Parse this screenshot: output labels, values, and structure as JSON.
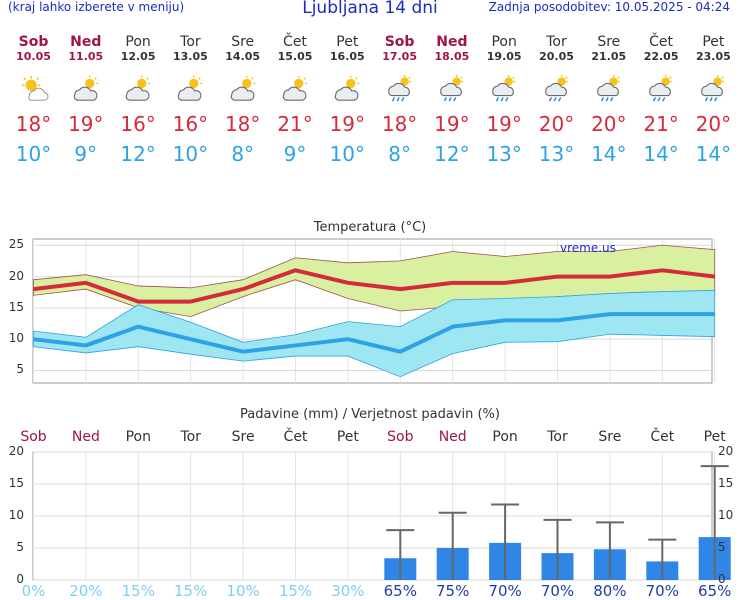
{
  "header": {
    "menu_hint": "(kraj lahko izberete v meniju)",
    "title": "Ljubljana 14 dni",
    "updated": "Zadnja posodobitev: 10.05.2025 - 04:24"
  },
  "days": [
    {
      "name": "Sob",
      "date": "10.05",
      "weekend": true,
      "icon": "partly-sunny-icon",
      "tmax": "18°",
      "tmin": "10°"
    },
    {
      "name": "Ned",
      "date": "11.05",
      "weekend": true,
      "icon": "cloudy-sun-icon",
      "tmax": "19°",
      "tmin": "9°"
    },
    {
      "name": "Pon",
      "date": "12.05",
      "weekend": false,
      "icon": "cloudy-sun-icon",
      "tmax": "16°",
      "tmin": "12°"
    },
    {
      "name": "Tor",
      "date": "13.05",
      "weekend": false,
      "icon": "cloudy-sun-icon",
      "tmax": "16°",
      "tmin": "10°"
    },
    {
      "name": "Sre",
      "date": "14.05",
      "weekend": false,
      "icon": "cloudy-sun-icon",
      "tmax": "18°",
      "tmin": "8°"
    },
    {
      "name": "Čet",
      "date": "15.05",
      "weekend": false,
      "icon": "cloudy-sun-icon",
      "tmax": "21°",
      "tmin": "9°"
    },
    {
      "name": "Pet",
      "date": "16.05",
      "weekend": false,
      "icon": "cloudy-sun-icon",
      "tmax": "19°",
      "tmin": "10°"
    },
    {
      "name": "Sob",
      "date": "17.05",
      "weekend": true,
      "icon": "rain-sun-icon",
      "tmax": "18°",
      "tmin": "8°"
    },
    {
      "name": "Ned",
      "date": "18.05",
      "weekend": true,
      "icon": "rain-sun-icon",
      "tmax": "19°",
      "tmin": "12°"
    },
    {
      "name": "Pon",
      "date": "19.05",
      "weekend": false,
      "icon": "rain-sun-icon",
      "tmax": "19°",
      "tmin": "13°"
    },
    {
      "name": "Tor",
      "date": "20.05",
      "weekend": false,
      "icon": "rain-sun-icon",
      "tmax": "20°",
      "tmin": "13°"
    },
    {
      "name": "Sre",
      "date": "21.05",
      "weekend": false,
      "icon": "rain-sun-icon",
      "tmax": "20°",
      "tmin": "14°"
    },
    {
      "name": "Čet",
      "date": "22.05",
      "weekend": false,
      "icon": "rain-sun-icon",
      "tmax": "21°",
      "tmin": "14°"
    },
    {
      "name": "Pet",
      "date": "23.05",
      "weekend": false,
      "icon": "rain-sun-icon",
      "tmax": "20°",
      "tmin": "14°"
    }
  ],
  "colors": {
    "tmax": "#d42a3c",
    "tmin": "#2ea2e6",
    "tmax_band": "#d8f0a0",
    "tmin_band": "#9ee6f2",
    "precip_bar": "#2f86e6",
    "weekend": "#a0144a"
  },
  "chart_data": [
    {
      "type": "line",
      "title": "Temperatura (°C)",
      "watermark": "vreme.us",
      "ylim": [
        3,
        26
      ],
      "yticks": [
        5,
        10,
        15,
        20,
        25
      ],
      "grid": true,
      "x": [
        "10.05",
        "11.05",
        "12.05",
        "13.05",
        "14.05",
        "15.05",
        "16.05",
        "17.05",
        "18.05",
        "19.05",
        "20.05",
        "21.05",
        "22.05",
        "23.05"
      ],
      "series": [
        {
          "values": [
            18,
            19,
            16,
            16,
            18,
            21,
            19,
            18,
            19,
            19,
            20,
            20,
            21,
            20
          ]
        },
        {
          "values": [
            19.5,
            20.3,
            18.5,
            18.2,
            19.5,
            23,
            22.2,
            22.5,
            24,
            23.2,
            24,
            24,
            25,
            24.3
          ]
        },
        {
          "values": [
            17,
            18,
            15,
            13.6,
            16.8,
            19.5,
            16.5,
            14.5,
            15.2,
            16.2,
            16.8,
            17.3,
            17.6,
            17
          ]
        },
        {
          "values": [
            10,
            9,
            12,
            10,
            8,
            9,
            10,
            8,
            12,
            13,
            13,
            14,
            14,
            14
          ]
        },
        {
          "values": [
            11.3,
            10.3,
            15.5,
            12.7,
            9.5,
            10.7,
            12.8,
            12,
            16.3,
            16.5,
            16.8,
            17.3,
            17.6,
            17.8
          ]
        },
        {
          "values": [
            8.8,
            7.8,
            8.8,
            7.6,
            6.5,
            7.3,
            7.3,
            4,
            7.7,
            9.5,
            9.6,
            10.8,
            10.6,
            10.4
          ]
        }
      ]
    },
    {
      "type": "bar",
      "title": "Padavine (mm) / Verjetnost padavin (%)",
      "ylim": [
        0,
        20
      ],
      "yticks": [
        0,
        5,
        10,
        15,
        20
      ],
      "grid": true,
      "categories": [
        "Sob",
        "Ned",
        "Pon",
        "Tor",
        "Sre",
        "Čet",
        "Pet",
        "Sob",
        "Ned",
        "Pon",
        "Tor",
        "Sre",
        "Čet",
        "Pet"
      ],
      "values": [
        0,
        0,
        0,
        0,
        0,
        0,
        0,
        3.4,
        5,
        5.8,
        4.2,
        4.8,
        2.9,
        6.7
      ],
      "range_low": [
        0,
        0,
        0,
        0,
        0,
        0,
        0,
        0,
        0,
        0,
        0,
        0.2,
        0,
        0
      ],
      "range_high": [
        0,
        0,
        0,
        0,
        0,
        0,
        0,
        7.8,
        10.5,
        11.8,
        9.4,
        9,
        6.3,
        17.8
      ],
      "probability": [
        "0%",
        "20%",
        "15%",
        "15%",
        "10%",
        "15%",
        "30%",
        "65%",
        "75%",
        "70%",
        "70%",
        "80%",
        "70%",
        "65%"
      ],
      "prob_value": [
        0,
        20,
        15,
        15,
        10,
        15,
        30,
        65,
        75,
        70,
        70,
        80,
        70,
        65
      ]
    }
  ]
}
